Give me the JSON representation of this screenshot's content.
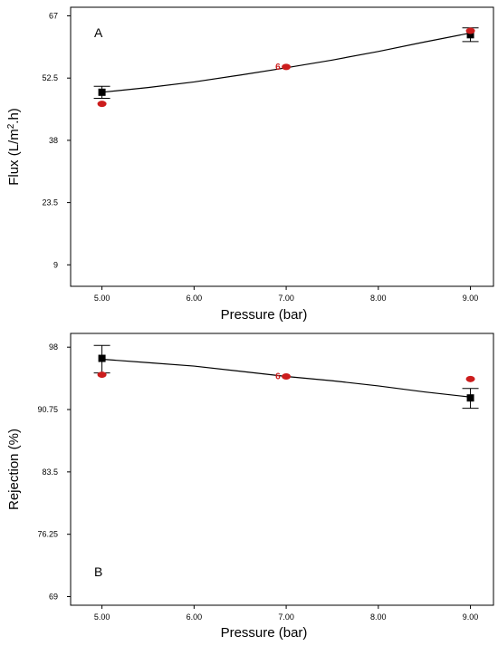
{
  "colors": {
    "predicted_marker": "#000000",
    "actual_marker": "#cc1d1d",
    "curve": "#000000",
    "frame": "#000000"
  },
  "chart_data": [
    {
      "type": "line",
      "panel_label": "A",
      "xlabel": "Pressure (bar)",
      "ylabel_main": "Flux (L/m",
      "ylabel_sup": "2",
      "ylabel_end": ".h)",
      "x_ticks": [
        "5.00",
        "6.00",
        "7.00",
        "8.00",
        "9.00"
      ],
      "y_ticks": [
        "9",
        "23.5",
        "38",
        "52.5",
        "67"
      ],
      "xlim": [
        4.66,
        9.25
      ],
      "ylim": [
        4,
        69
      ],
      "curve": {
        "x": [
          5.0,
          5.5,
          6.0,
          6.5,
          7.0,
          7.5,
          8.0,
          8.5,
          9.0
        ],
        "y": [
          49.2,
          50.3,
          51.6,
          53.2,
          54.9,
          56.7,
          58.7,
          60.9,
          63.0
        ]
      },
      "predicted": {
        "x": [
          5.0,
          9.0
        ],
        "y": [
          49.2,
          62.6
        ],
        "err_low": [
          47.8,
          61.0
        ],
        "err_high": [
          50.6,
          64.2
        ]
      },
      "actual": {
        "x": [
          5.0,
          7.0,
          9.0
        ],
        "y": [
          46.5,
          55.1,
          63.5
        ]
      },
      "replicate_label": {
        "x": 7.0,
        "y": 55.1,
        "text": "6"
      }
    },
    {
      "type": "line",
      "panel_label": "B",
      "xlabel": "Pressure (bar)",
      "ylabel_main": "Rejection (%)",
      "ylabel_sup": "",
      "ylabel_end": "",
      "x_ticks": [
        "5.00",
        "6.00",
        "7.00",
        "8.00",
        "9.00"
      ],
      "y_ticks": [
        "69",
        "76.25",
        "83.5",
        "90.75",
        "98"
      ],
      "xlim": [
        4.66,
        9.25
      ],
      "ylim": [
        68.0,
        99.6
      ],
      "curve": {
        "x": [
          5.0,
          5.5,
          6.0,
          6.5,
          7.0,
          7.5,
          8.0,
          8.5,
          9.0
        ],
        "y": [
          96.6,
          96.2,
          95.8,
          95.2,
          94.6,
          94.1,
          93.5,
          92.8,
          92.2
        ]
      },
      "predicted": {
        "x": [
          5.0,
          9.0
        ],
        "y": [
          96.7,
          92.1
        ],
        "err_low": [
          95.0,
          90.9
        ],
        "err_high": [
          98.2,
          93.2
        ]
      },
      "actual": {
        "x": [
          5.0,
          7.0,
          9.0
        ],
        "y": [
          94.8,
          94.6,
          94.3
        ]
      },
      "replicate_label": {
        "x": 7.0,
        "y": 94.6,
        "text": "6"
      }
    }
  ]
}
